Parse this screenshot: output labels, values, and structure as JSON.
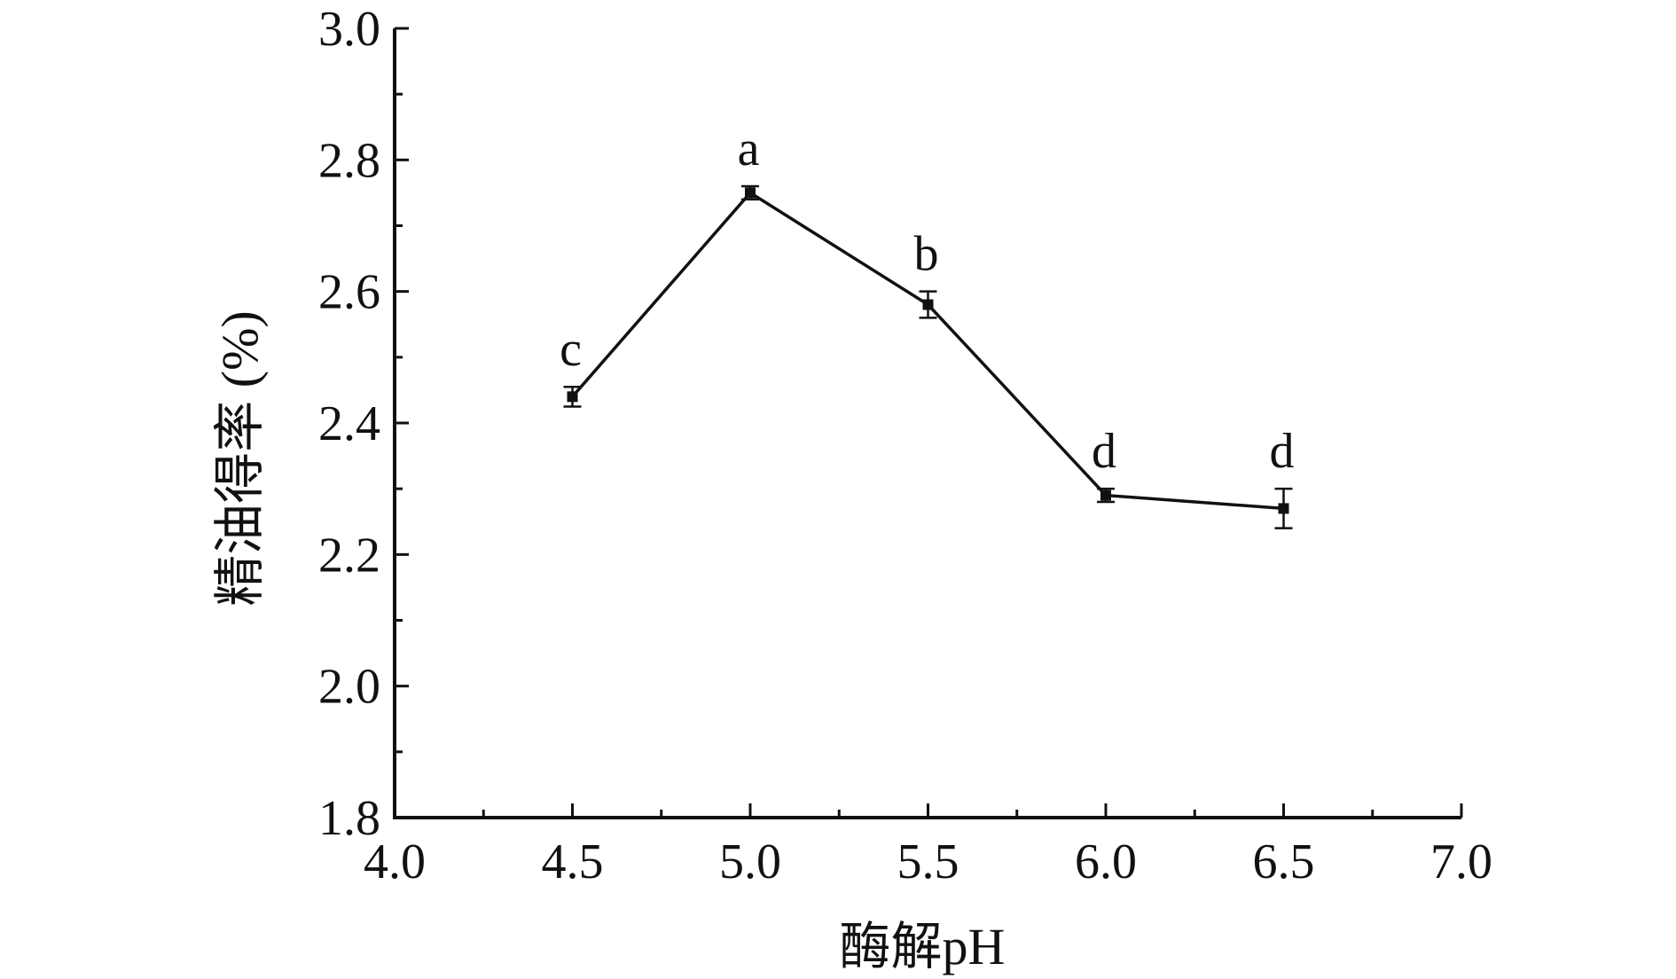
{
  "chart_data": {
    "type": "line",
    "xlabel": "酶解pH",
    "ylabel": "精油得率 (%)",
    "xlim": [
      4.0,
      7.0
    ],
    "ylim": [
      1.8,
      3.0
    ],
    "x_ticks": [
      "4.0",
      "4.5",
      "5.0",
      "5.5",
      "6.0",
      "6.5",
      "7.0"
    ],
    "y_ticks": [
      "1.8",
      "2.0",
      "2.2",
      "2.4",
      "2.6",
      "2.8",
      "3.0"
    ],
    "x_minor_step": 0.25,
    "y_minor_step": 0.1,
    "grid": false,
    "series": [
      {
        "x": [
          4.5,
          5.0,
          5.5,
          6.0,
          6.5
        ],
        "y": [
          2.44,
          2.75,
          2.58,
          2.29,
          2.27
        ],
        "error": [
          0.015,
          0.01,
          0.02,
          0.01,
          0.03
        ],
        "labels": [
          "c",
          "a",
          "b",
          "d",
          "d"
        ]
      }
    ],
    "colors": {
      "line": "#111111",
      "axis": "#111111"
    }
  }
}
